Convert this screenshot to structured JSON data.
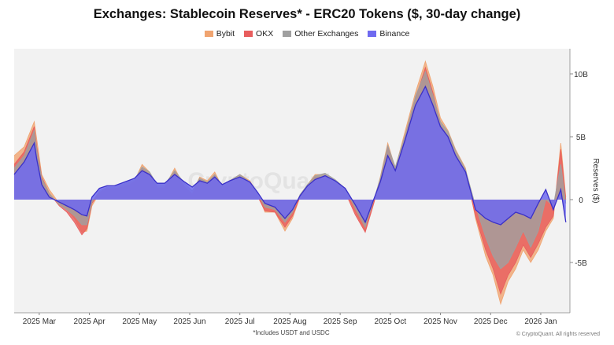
{
  "chart_data": {
    "type": "area",
    "title": "Exchanges: Stablecoin Reserves* - ERC20 Tokens ($, 30-day change)",
    "ylabel": "Reserves ($)",
    "footnote": "*Includes USDT and USDC",
    "credit": "© CryptoQuant. All rights reserved",
    "watermark": "CryptoQuant",
    "ylim": [
      -9.0,
      12.0
    ],
    "y_ticks": [
      {
        "value": 10,
        "label": "10B"
      },
      {
        "value": 5,
        "label": "5B"
      },
      {
        "value": 0,
        "label": "0"
      },
      {
        "value": -5,
        "label": "-5B"
      }
    ],
    "xlim": [
      0,
      11.05
    ],
    "x_ticks": [
      {
        "value": 0.5,
        "label": "2025 Mar"
      },
      {
        "value": 1.5,
        "label": "2025 Apr"
      },
      {
        "value": 2.5,
        "label": "2025 May"
      },
      {
        "value": 3.5,
        "label": "2025 Jun"
      },
      {
        "value": 4.5,
        "label": "2025 Jul"
      },
      {
        "value": 5.5,
        "label": "2025 Aug"
      },
      {
        "value": 6.5,
        "label": "2025 Sep"
      },
      {
        "value": 7.5,
        "label": "2025 Oct"
      },
      {
        "value": 8.5,
        "label": "2025 Nov"
      },
      {
        "value": 9.5,
        "label": "2025 Dec"
      },
      {
        "value": 10.5,
        "label": "2026 Jan"
      }
    ],
    "x": [
      0.0,
      0.2,
      0.4,
      0.45,
      0.55,
      0.7,
      0.9,
      1.05,
      1.2,
      1.35,
      1.45,
      1.55,
      1.7,
      1.85,
      2.0,
      2.2,
      2.4,
      2.55,
      2.7,
      2.85,
      3.0,
      3.2,
      3.4,
      3.55,
      3.7,
      3.85,
      4.0,
      4.15,
      4.3,
      4.5,
      4.7,
      4.85,
      5.0,
      5.2,
      5.4,
      5.55,
      5.7,
      5.85,
      6.0,
      6.2,
      6.4,
      6.6,
      6.8,
      7.0,
      7.15,
      7.3,
      7.45,
      7.6,
      7.8,
      8.0,
      8.2,
      8.35,
      8.5,
      8.65,
      8.8,
      9.0,
      9.2,
      9.4,
      9.55,
      9.7,
      9.85,
      10.0,
      10.15,
      10.3,
      10.45,
      10.6,
      10.75,
      10.9,
      11.0
    ],
    "series": [
      {
        "name": "Bybit",
        "color": "#f0a470",
        "values": [
          3.5,
          4.2,
          6.2,
          4.8,
          2.0,
          0.8,
          -0.3,
          -0.8,
          -1.5,
          -2.6,
          -2.5,
          -0.5,
          0.5,
          0.8,
          0.8,
          1.2,
          1.5,
          2.8,
          2.2,
          1.0,
          1.0,
          2.5,
          1.0,
          0.5,
          1.8,
          1.5,
          2.2,
          1.0,
          1.5,
          2.0,
          1.5,
          0.5,
          -1.0,
          -1.0,
          -2.5,
          -1.5,
          0.2,
          1.2,
          2.0,
          2.0,
          1.5,
          0.8,
          -1.0,
          -2.5,
          -0.5,
          1.8,
          4.5,
          2.5,
          5.5,
          8.5,
          11.0,
          9.0,
          6.5,
          5.5,
          4.0,
          2.5,
          -1.5,
          -4.5,
          -6.0,
          -8.3,
          -6.5,
          -5.5,
          -4.0,
          -5.0,
          -4.0,
          -2.5,
          -1.5,
          4.5,
          0.2
        ]
      },
      {
        "name": "OKX",
        "color": "#e85d5d",
        "values": [
          2.8,
          3.8,
          5.8,
          4.2,
          1.8,
          0.5,
          -0.5,
          -1.0,
          -1.8,
          -2.8,
          -2.3,
          -0.3,
          0.6,
          0.9,
          0.9,
          1.0,
          1.4,
          2.5,
          2.0,
          0.9,
          0.9,
          2.2,
          1.0,
          0.4,
          1.6,
          1.3,
          1.9,
          0.8,
          1.2,
          1.8,
          1.3,
          0.3,
          -0.9,
          -1.0,
          -2.2,
          -1.3,
          0.2,
          1.0,
          1.8,
          1.8,
          1.3,
          0.6,
          -1.2,
          -2.6,
          -0.6,
          1.5,
          4.2,
          2.2,
          5.0,
          8.0,
          10.5,
          8.5,
          6.0,
          5.0,
          3.6,
          2.0,
          -1.3,
          -4.0,
          -5.5,
          -7.5,
          -6.0,
          -5.0,
          -3.6,
          -4.6,
          -3.5,
          -2.2,
          -1.3,
          4.0,
          0.0
        ]
      },
      {
        "name": "Other Exchanges",
        "color": "#a0a0a0",
        "values": [
          2.5,
          3.5,
          5.5,
          4.0,
          1.7,
          0.5,
          -0.4,
          -0.8,
          -1.3,
          -2.0,
          -2.0,
          -0.2,
          0.7,
          1.0,
          1.0,
          1.3,
          1.6,
          2.6,
          2.2,
          1.2,
          1.2,
          2.3,
          1.3,
          0.7,
          1.7,
          1.4,
          2.0,
          1.1,
          1.5,
          2.0,
          1.4,
          0.5,
          -0.6,
          -0.8,
          -1.8,
          -1.0,
          0.4,
          1.2,
          1.9,
          2.1,
          1.6,
          0.9,
          -0.7,
          -2.2,
          -0.3,
          1.7,
          4.3,
          2.6,
          5.2,
          8.2,
          10.2,
          8.3,
          6.2,
          5.4,
          3.9,
          2.4,
          -0.5,
          -3.0,
          -4.5,
          -5.5,
          -5.0,
          -3.8,
          -2.5,
          -3.8,
          -2.5,
          0.0,
          -0.5,
          2.8,
          -0.3
        ]
      },
      {
        "name": "Binance",
        "color": "#6f6af0",
        "values": [
          2.0,
          3.0,
          4.5,
          3.2,
          1.2,
          0.2,
          -0.2,
          -0.5,
          -0.8,
          -1.2,
          -1.3,
          0.2,
          0.9,
          1.1,
          1.1,
          1.4,
          1.7,
          2.3,
          2.0,
          1.3,
          1.3,
          2.0,
          1.4,
          1.0,
          1.5,
          1.3,
          1.8,
          1.2,
          1.5,
          1.8,
          1.4,
          0.6,
          -0.3,
          -0.6,
          -1.5,
          -0.8,
          0.3,
          1.1,
          1.6,
          1.9,
          1.5,
          0.9,
          -0.4,
          -1.8,
          -0.2,
          1.4,
          3.5,
          2.3,
          4.8,
          7.5,
          9.0,
          7.5,
          5.8,
          5.0,
          3.5,
          2.2,
          -0.8,
          -1.5,
          -1.8,
          -2.0,
          -1.5,
          -1.0,
          -1.2,
          -1.5,
          -0.3,
          0.8,
          -0.8,
          0.8,
          -1.8
        ]
      }
    ]
  }
}
